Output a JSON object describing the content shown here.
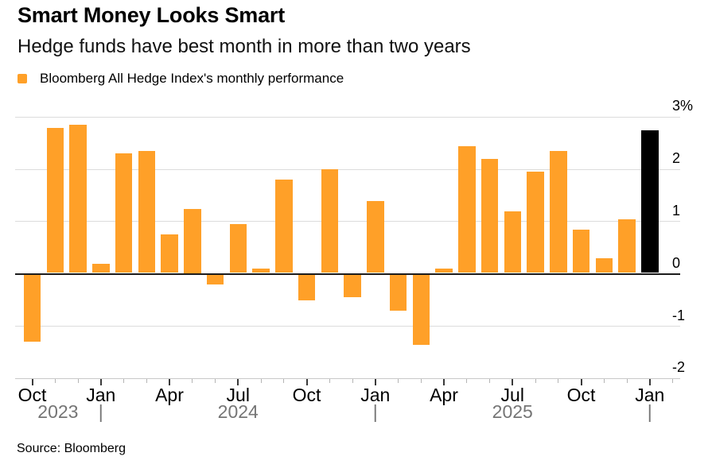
{
  "header": {
    "title": "Smart Money Looks Smart",
    "subtitle": "Hedge funds have best month in more than two years"
  },
  "legend": {
    "label": "Bloomberg All Hedge Index's monthly performance",
    "swatch_color": "#FFA028"
  },
  "source_note": "Source: Bloomberg",
  "chart_data": {
    "type": "bar",
    "title": "Smart Money Looks Smart",
    "subtitle": "Hedge funds have best month in more than two years",
    "series_name": "Bloomberg All Hedge Index's monthly performance",
    "unit": "percent",
    "grid": "horizontal",
    "legend_position": "top-left",
    "categories": [
      "Oct 2023",
      "Nov 2023",
      "Dec 2023",
      "Jan 2024",
      "Feb 2024",
      "Mar 2024",
      "Apr 2024",
      "May 2024",
      "Jun 2024",
      "Jul 2024",
      "Aug 2024",
      "Sep 2024",
      "Oct 2024",
      "Nov 2024",
      "Dec 2024",
      "Jan 2025",
      "Feb 2025",
      "Mar 2025",
      "Apr 2025",
      "May 2025",
      "Jun 2025",
      "Jul 2025",
      "Aug 2025",
      "Sep 2025",
      "Oct 2025",
      "Nov 2025",
      "Dec 2025",
      "Jan 2026"
    ],
    "values": [
      -1.3,
      2.8,
      2.85,
      0.2,
      2.3,
      2.35,
      0.75,
      1.25,
      -0.2,
      0.95,
      0.1,
      1.8,
      -0.5,
      2.0,
      -0.45,
      1.4,
      -0.7,
      -1.35,
      0.1,
      2.45,
      2.2,
      1.2,
      1.95,
      2.35,
      0.85,
      0.3,
      1.05,
      2.75
    ],
    "highlight_index": 27,
    "ylim": [
      -2,
      3
    ],
    "y_axis": {
      "side": "right",
      "ticks": [
        {
          "value": 3,
          "label": "3%"
        },
        {
          "value": 2,
          "label": "2"
        },
        {
          "value": 1,
          "label": "1"
        },
        {
          "value": 0,
          "label": "0"
        },
        {
          "value": -1,
          "label": "-1"
        },
        {
          "value": -2,
          "label": "-2"
        }
      ]
    },
    "x_axis": {
      "quarter_tick_labels": [
        "Oct",
        "Jan",
        "Apr",
        "Jul",
        "Oct",
        "Jan",
        "Apr",
        "Jul",
        "Oct",
        "Jan"
      ],
      "quarter_tick_indices": [
        0,
        3,
        6,
        9,
        12,
        15,
        18,
        21,
        24,
        27
      ],
      "year_labels": [
        "2023",
        "2024",
        "2025"
      ],
      "year_separator_glyph": "|",
      "year_separator_indices": [
        3,
        15,
        27
      ]
    },
    "colors": {
      "bar": "#FFA028",
      "bar_highlight": "#000000",
      "gridline": "#DCDCDC",
      "zero_line": "#1C1C1C",
      "axis_line": "#C9C9C9",
      "tick_major": "#3A3A3A",
      "tick_minor": "#B5B5B5",
      "month_label": "#000000",
      "year_label": "#757575",
      "y_label": "#000000"
    }
  }
}
